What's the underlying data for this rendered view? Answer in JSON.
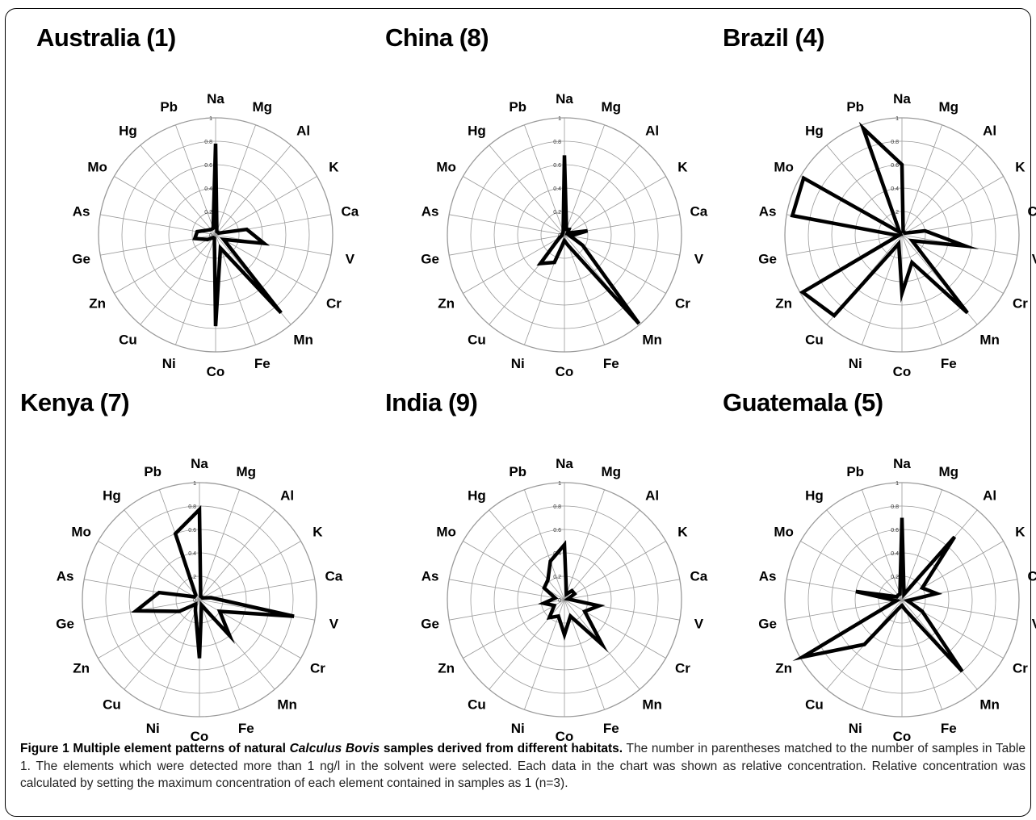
{
  "figure": {
    "caption_label": "Figure 1",
    "caption_title_a": "Multiple element patterns of natural",
    "caption_title_italic": "Calculus Bovis",
    "caption_title_b": "samples derived from different habitats.",
    "caption_body": "The number in parentheses matched to the number of samples in Table 1. The elements which were detected more than 1 ng/l in the solvent were selected. Each data in the chart was shown as relative concentration. Relative concentration was calculated by setting the maximum concentration of each element contained in samples as 1 (n=3)."
  },
  "chart_data": [
    {
      "type": "radar",
      "title": "Australia (1)",
      "axes": [
        "Na",
        "Mg",
        "Al",
        "K",
        "Ca",
        "V",
        "Cr",
        "Mn",
        "Fe",
        "Co",
        "Ni",
        "Cu",
        "Zn",
        "Ge",
        "As",
        "Mo",
        "Hg",
        "Pb"
      ],
      "tick_labels": [
        "0",
        "0.2",
        "0.4",
        "0.6",
        "0.8",
        "1"
      ],
      "rlim": [
        0,
        1
      ],
      "grid": true,
      "values": [
        0.78,
        0.03,
        0.03,
        0.03,
        0.27,
        0.42,
        0.08,
        0.87,
        0.12,
        0.78,
        0.03,
        0.03,
        0.08,
        0.18,
        0.16,
        0.08,
        0.06,
        0.06
      ]
    },
    {
      "type": "radar",
      "title": "China (8)",
      "axes": [
        "Na",
        "Mg",
        "Al",
        "K",
        "Ca",
        "V",
        "Cr",
        "Mn",
        "Fe",
        "Co",
        "Ni",
        "Cu",
        "Zn",
        "Ge",
        "As",
        "Mo",
        "Hg",
        "Pb"
      ],
      "tick_labels": [
        "0",
        "0.2",
        "0.4",
        "0.6",
        "0.8",
        "1"
      ],
      "rlim": [
        0,
        1
      ],
      "grid": true,
      "values": [
        0.68,
        0.05,
        0.06,
        0.03,
        0.2,
        0.05,
        0.18,
        0.99,
        0.1,
        0.05,
        0.25,
        0.32,
        0.05,
        0.02,
        0.02,
        0.02,
        0.02,
        0.03
      ]
    },
    {
      "type": "radar",
      "title": "Brazil (4)",
      "axes": [
        "Na",
        "Mg",
        "Al",
        "K",
        "Ca",
        "V",
        "Cr",
        "Mn",
        "Fe",
        "Co",
        "Ni",
        "Cu",
        "Zn",
        "Ge",
        "As",
        "Mo",
        "Hg",
        "Pb"
      ],
      "tick_labels": [
        "0",
        "0.2",
        "0.4",
        "0.6",
        "0.8",
        "1"
      ],
      "rlim": [
        0,
        1
      ],
      "grid": true,
      "values": [
        0.6,
        0.03,
        0.03,
        0.03,
        0.2,
        0.55,
        0.1,
        0.87,
        0.25,
        0.5,
        0.08,
        0.9,
        0.98,
        0.03,
        0.95,
        0.97,
        0.03,
        0.97
      ]
    },
    {
      "type": "radar",
      "title": "Kenya (7)",
      "axes": [
        "Na",
        "Mg",
        "Al",
        "K",
        "Ca",
        "V",
        "Cr",
        "Mn",
        "Fe",
        "Co",
        "Ni",
        "Cu",
        "Zn",
        "Ge",
        "As",
        "Mo",
        "Hg",
        "Pb"
      ],
      "tick_labels": [
        "0",
        "0.2",
        "0.4",
        "0.6",
        "0.8",
        "1"
      ],
      "rlim": [
        0,
        1
      ],
      "grid": true,
      "values": [
        0.77,
        0.03,
        0.03,
        0.03,
        0.1,
        0.82,
        0.2,
        0.4,
        0.05,
        0.5,
        0.1,
        0.05,
        0.2,
        0.55,
        0.35,
        0.05,
        0.05,
        0.6
      ]
    },
    {
      "type": "radar",
      "title": "India (9)",
      "axes": [
        "Na",
        "Mg",
        "Al",
        "K",
        "Ca",
        "V",
        "Cr",
        "Mn",
        "Fe",
        "Co",
        "Ni",
        "Cu",
        "Zn",
        "Ge",
        "As",
        "Mo",
        "Hg",
        "Pb"
      ],
      "tick_labels": [
        "0",
        "0.2",
        "0.4",
        "0.6",
        "0.8",
        "1"
      ],
      "rlim": [
        0,
        1
      ],
      "grid": true,
      "values": [
        0.47,
        0.05,
        0.1,
        0.1,
        0.03,
        0.3,
        0.2,
        0.5,
        0.15,
        0.3,
        0.15,
        0.2,
        0.1,
        0.18,
        0.08,
        0.2,
        0.22,
        0.35
      ]
    },
    {
      "type": "radar",
      "title": "Guatemala (5)",
      "axes": [
        "Na",
        "Mg",
        "Al",
        "K",
        "Ca",
        "V",
        "Cr",
        "Mn",
        "Fe",
        "Co",
        "Ni",
        "Cu",
        "Zn",
        "Ge",
        "As",
        "Mo",
        "Hg",
        "Pb"
      ],
      "tick_labels": [
        "0",
        "0.2",
        "0.4",
        "0.6",
        "0.8",
        "1"
      ],
      "rlim": [
        0,
        1
      ],
      "grid": true,
      "values": [
        0.7,
        0.05,
        0.7,
        0.2,
        0.3,
        0.05,
        0.2,
        0.8,
        0.1,
        0.05,
        0.08,
        0.5,
        0.98,
        0.05,
        0.4,
        0.05,
        0.05,
        0.05
      ]
    }
  ]
}
